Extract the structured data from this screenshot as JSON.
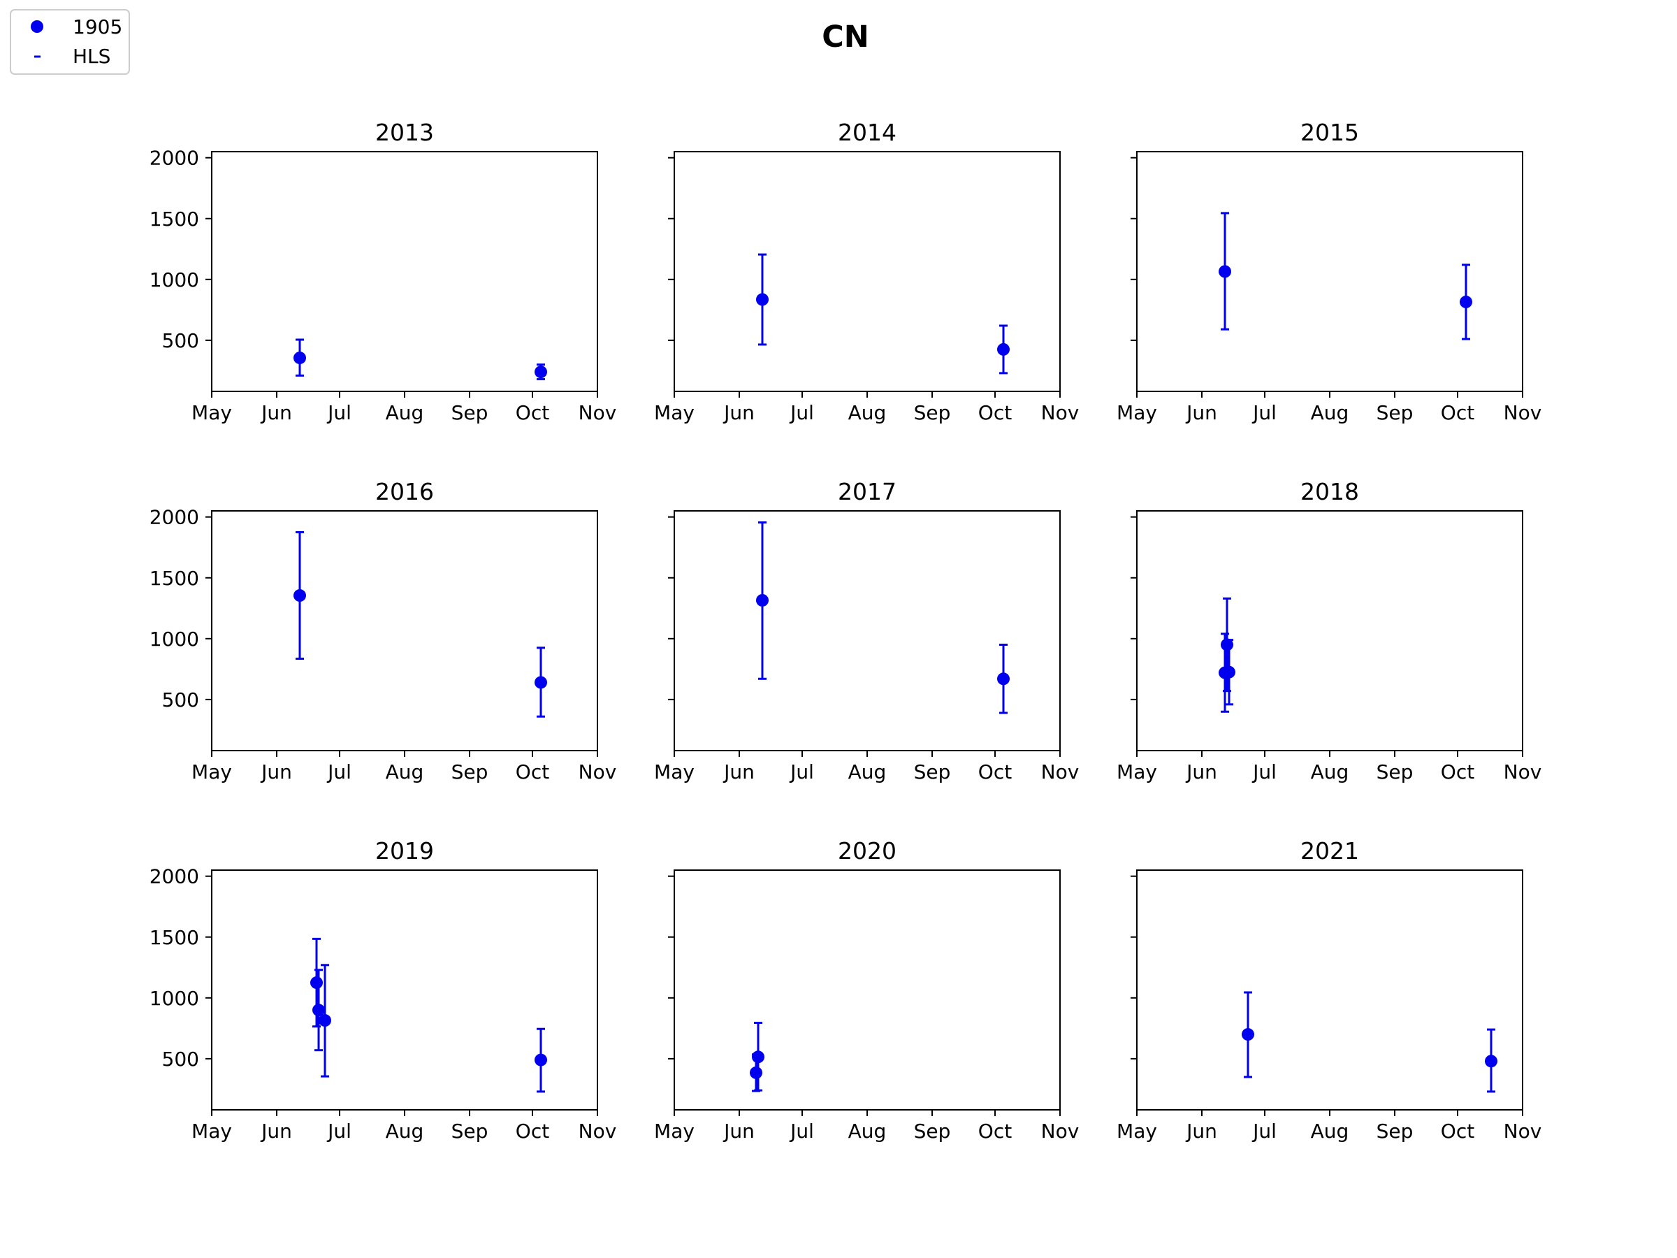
{
  "figure": {
    "title": "CN"
  },
  "legend": {
    "placement": "upper-left",
    "entries": [
      {
        "label": "1905",
        "marker": "circle"
      },
      {
        "label": "HLS",
        "marker": "dash"
      }
    ]
  },
  "colors": {
    "series": "#0000ee",
    "axes": "#000000",
    "background": "#ffffff"
  },
  "chart_data": [
    {
      "type": "scatter",
      "title": "2013",
      "xlim": [
        "May",
        "Nov"
      ],
      "ylim": [
        80,
        2050
      ],
      "x_ticks": [
        "May",
        "Jun",
        "Jul",
        "Aug",
        "Sep",
        "Oct",
        "Nov"
      ],
      "y_ticks": [
        500,
        1000,
        1500,
        2000
      ],
      "y_tick_labels_shown": true,
      "points": [
        {
          "x": "2013-06-12",
          "y": 355,
          "err_low": 210,
          "err_high": 505
        },
        {
          "x": "2013-10-05",
          "y": 240,
          "err_low": 180,
          "err_high": 300
        }
      ]
    },
    {
      "type": "scatter",
      "title": "2014",
      "xlim": [
        "May",
        "Nov"
      ],
      "ylim": [
        80,
        2050
      ],
      "x_ticks": [
        "May",
        "Jun",
        "Jul",
        "Aug",
        "Sep",
        "Oct",
        "Nov"
      ],
      "y_ticks": [
        500,
        1000,
        1500,
        2000
      ],
      "y_tick_labels_shown": false,
      "points": [
        {
          "x": "2014-06-12",
          "y": 835,
          "err_low": 465,
          "err_high": 1205
        },
        {
          "x": "2014-10-05",
          "y": 425,
          "err_low": 230,
          "err_high": 620
        }
      ]
    },
    {
      "type": "scatter",
      "title": "2015",
      "xlim": [
        "May",
        "Nov"
      ],
      "ylim": [
        80,
        2050
      ],
      "x_ticks": [
        "May",
        "Jun",
        "Jul",
        "Aug",
        "Sep",
        "Oct",
        "Nov"
      ],
      "y_ticks": [
        500,
        1000,
        1500,
        2000
      ],
      "y_tick_labels_shown": false,
      "points": [
        {
          "x": "2015-06-12",
          "y": 1065,
          "err_low": 590,
          "err_high": 1545
        },
        {
          "x": "2015-10-05",
          "y": 815,
          "err_low": 510,
          "err_high": 1120
        }
      ]
    },
    {
      "type": "scatter",
      "title": "2016",
      "xlim": [
        "May",
        "Nov"
      ],
      "ylim": [
        80,
        2050
      ],
      "x_ticks": [
        "May",
        "Jun",
        "Jul",
        "Aug",
        "Sep",
        "Oct",
        "Nov"
      ],
      "y_ticks": [
        500,
        1000,
        1500,
        2000
      ],
      "y_tick_labels_shown": true,
      "points": [
        {
          "x": "2016-06-12",
          "y": 1355,
          "err_low": 835,
          "err_high": 1875
        },
        {
          "x": "2016-10-05",
          "y": 640,
          "err_low": 360,
          "err_high": 925
        }
      ]
    },
    {
      "type": "scatter",
      "title": "2017",
      "xlim": [
        "May",
        "Nov"
      ],
      "ylim": [
        80,
        2050
      ],
      "x_ticks": [
        "May",
        "Jun",
        "Jul",
        "Aug",
        "Sep",
        "Oct",
        "Nov"
      ],
      "y_ticks": [
        500,
        1000,
        1500,
        2000
      ],
      "y_tick_labels_shown": false,
      "points": [
        {
          "x": "2017-06-12",
          "y": 1315,
          "err_low": 670,
          "err_high": 1955
        },
        {
          "x": "2017-10-05",
          "y": 670,
          "err_low": 390,
          "err_high": 950
        }
      ]
    },
    {
      "type": "scatter",
      "title": "2018",
      "xlim": [
        "May",
        "Nov"
      ],
      "ylim": [
        80,
        2050
      ],
      "x_ticks": [
        "May",
        "Jun",
        "Jul",
        "Aug",
        "Sep",
        "Oct",
        "Nov"
      ],
      "y_ticks": [
        500,
        1000,
        1500,
        2000
      ],
      "y_tick_labels_shown": false,
      "points": [
        {
          "x": "2018-06-12",
          "y": 720,
          "err_low": 400,
          "err_high": 1040
        },
        {
          "x": "2018-06-13",
          "y": 950,
          "err_low": 570,
          "err_high": 1330
        },
        {
          "x": "2018-06-14",
          "y": 725,
          "err_low": 460,
          "err_high": 990
        }
      ]
    },
    {
      "type": "scatter",
      "title": "2019",
      "xlim": [
        "May",
        "Nov"
      ],
      "ylim": [
        80,
        2050
      ],
      "x_ticks": [
        "May",
        "Jun",
        "Jul",
        "Aug",
        "Sep",
        "Oct",
        "Nov"
      ],
      "y_ticks": [
        500,
        1000,
        1500,
        2000
      ],
      "y_tick_labels_shown": true,
      "points": [
        {
          "x": "2019-06-20",
          "y": 1125,
          "err_low": 765,
          "err_high": 1485
        },
        {
          "x": "2019-06-21",
          "y": 900,
          "err_low": 570,
          "err_high": 1230
        },
        {
          "x": "2019-06-24",
          "y": 815,
          "err_low": 355,
          "err_high": 1270
        },
        {
          "x": "2019-10-05",
          "y": 490,
          "err_low": 230,
          "err_high": 745
        }
      ]
    },
    {
      "type": "scatter",
      "title": "2020",
      "xlim": [
        "May",
        "Nov"
      ],
      "ylim": [
        80,
        2050
      ],
      "x_ticks": [
        "May",
        "Jun",
        "Jul",
        "Aug",
        "Sep",
        "Oct",
        "Nov"
      ],
      "y_ticks": [
        500,
        1000,
        1500,
        2000
      ],
      "y_tick_labels_shown": false,
      "points": [
        {
          "x": "2020-06-09",
          "y": 385,
          "err_low": 235,
          "err_high": 535
        },
        {
          "x": "2020-06-10",
          "y": 515,
          "err_low": 240,
          "err_high": 795
        }
      ]
    },
    {
      "type": "scatter",
      "title": "2021",
      "xlim": [
        "May",
        "Nov"
      ],
      "ylim": [
        80,
        2050
      ],
      "x_ticks": [
        "May",
        "Jun",
        "Jul",
        "Aug",
        "Sep",
        "Oct",
        "Nov"
      ],
      "y_ticks": [
        500,
        1000,
        1500,
        2000
      ],
      "y_tick_labels_shown": false,
      "points": [
        {
          "x": "2021-06-23",
          "y": 700,
          "err_low": 350,
          "err_high": 1045
        },
        {
          "x": "2021-10-17",
          "y": 480,
          "err_low": 230,
          "err_high": 740
        }
      ]
    }
  ]
}
